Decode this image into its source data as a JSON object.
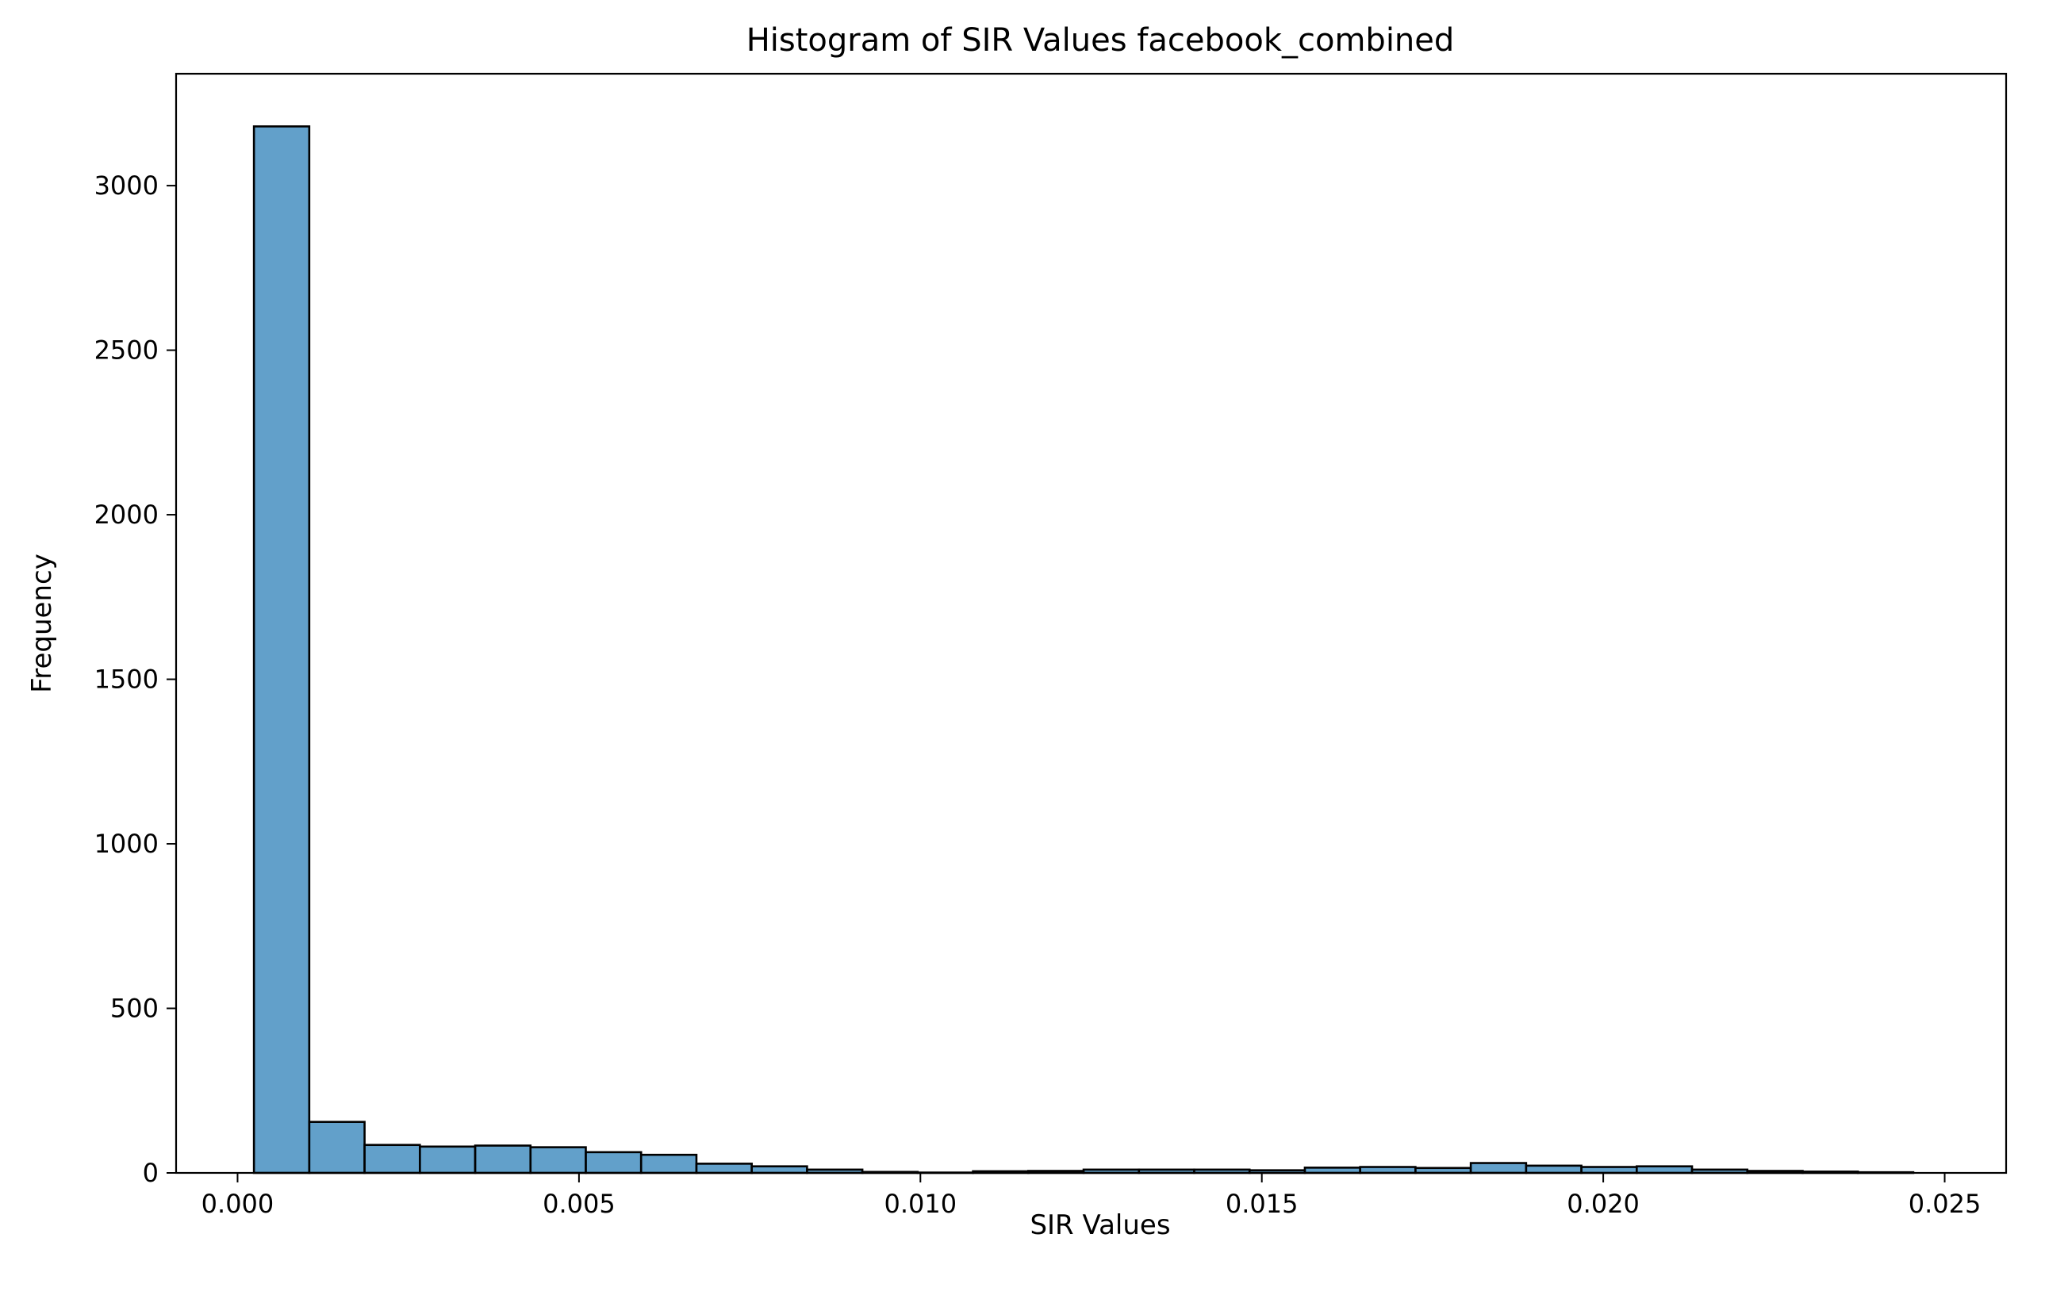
{
  "chart_data": {
    "type": "bar",
    "title": "Histogram of SIR Values facebook_combined",
    "xlabel": "SIR Values",
    "ylabel": "Frequency",
    "bin_edges": [
      0.00024,
      0.00105,
      0.00186,
      0.00267,
      0.00348,
      0.00429,
      0.0051,
      0.00591,
      0.00672,
      0.00753,
      0.00834,
      0.00915,
      0.00996,
      0.01077,
      0.01158,
      0.01239,
      0.0132,
      0.01401,
      0.01482,
      0.01563,
      0.01644,
      0.01725,
      0.01806,
      0.01887,
      0.01968,
      0.02049,
      0.0213,
      0.02211,
      0.02292,
      0.02373,
      0.02454
    ],
    "values": [
      3180,
      155,
      85,
      80,
      83,
      78,
      63,
      55,
      28,
      20,
      10,
      3,
      1,
      5,
      6,
      10,
      10,
      10,
      8,
      16,
      18,
      15,
      30,
      22,
      18,
      20,
      10,
      6,
      4,
      2
    ],
    "xlim": [
      -0.0009,
      0.0259
    ],
    "ylim": [
      0,
      3340
    ],
    "xticks": [
      0.0,
      0.005,
      0.01,
      0.015,
      0.02,
      0.025
    ],
    "xtick_labels": [
      "0.000",
      "0.005",
      "0.010",
      "0.015",
      "0.020",
      "0.025"
    ],
    "yticks": [
      0,
      500,
      1000,
      1500,
      2000,
      2500,
      3000
    ],
    "ytick_labels": [
      "0",
      "500",
      "1000",
      "1500",
      "2000",
      "2500",
      "3000"
    ],
    "grid": false,
    "colors": {
      "bar_fill": "#1f77b4",
      "bar_opacity": 0.7,
      "bar_edge": "#000000"
    }
  }
}
